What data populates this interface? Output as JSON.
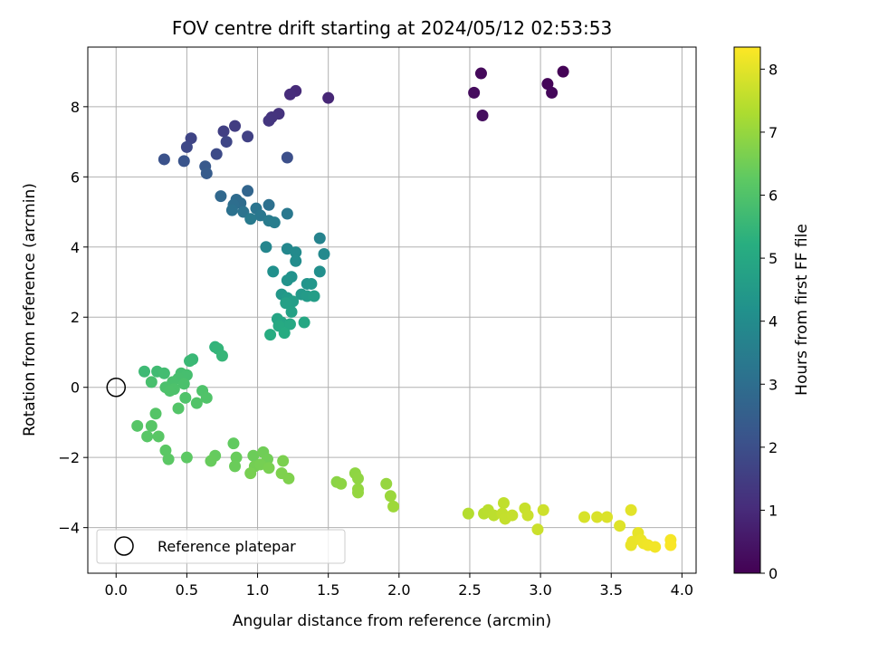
{
  "chart_data": {
    "type": "scatter",
    "title": "FOV centre drift starting at 2024/05/12 02:53:53",
    "xlabel": "Angular distance from reference (arcmin)",
    "ylabel": "Rotation from reference (arcmin)",
    "xlim": [
      -0.2,
      4.1
    ],
    "ylim": [
      -5.3,
      9.7
    ],
    "xticks": [
      0.0,
      0.5,
      1.0,
      1.5,
      2.0,
      2.5,
      3.0,
      3.5,
      4.0
    ],
    "xtick_labels": [
      "0.0",
      "0.5",
      "1.0",
      "1.5",
      "2.0",
      "2.5",
      "3.0",
      "3.5",
      "4.0"
    ],
    "yticks": [
      -4,
      -2,
      0,
      2,
      4,
      6,
      8
    ],
    "ytick_labels": [
      "−4",
      "−2",
      "0",
      "2",
      "4",
      "6",
      "8"
    ],
    "grid": true,
    "colormap": "viridis",
    "colorbar": {
      "label": "Hours from first FF file",
      "min": 0,
      "max": 8.35,
      "ticks": [
        0,
        1,
        2,
        3,
        4,
        5,
        6,
        7,
        8
      ],
      "tick_labels": [
        "0",
        "1",
        "2",
        "3",
        "4",
        "5",
        "6",
        "7",
        "8"
      ]
    },
    "legend": {
      "position": "lower-left",
      "entries": [
        {
          "label": "Reference platepar",
          "marker": "open-circle"
        }
      ]
    },
    "reference_point": {
      "x": 0.0,
      "y": 0.0
    },
    "points": [
      {
        "x": 3.16,
        "y": 9.0,
        "c": 0.05
      },
      {
        "x": 3.05,
        "y": 8.65,
        "c": 0.1
      },
      {
        "x": 3.08,
        "y": 8.4,
        "c": 0.15
      },
      {
        "x": 2.58,
        "y": 8.95,
        "c": 0.2
      },
      {
        "x": 2.53,
        "y": 8.4,
        "c": 0.25
      },
      {
        "x": 2.59,
        "y": 7.75,
        "c": 0.3
      },
      {
        "x": 1.5,
        "y": 8.25,
        "c": 0.9
      },
      {
        "x": 1.27,
        "y": 8.45,
        "c": 1.0
      },
      {
        "x": 1.23,
        "y": 8.35,
        "c": 1.05
      },
      {
        "x": 1.15,
        "y": 7.8,
        "c": 1.2
      },
      {
        "x": 1.1,
        "y": 7.7,
        "c": 1.25
      },
      {
        "x": 1.08,
        "y": 7.6,
        "c": 1.3
      },
      {
        "x": 0.84,
        "y": 7.45,
        "c": 1.5
      },
      {
        "x": 0.76,
        "y": 7.3,
        "c": 1.55
      },
      {
        "x": 0.93,
        "y": 7.15,
        "c": 1.6
      },
      {
        "x": 0.53,
        "y": 7.1,
        "c": 1.7
      },
      {
        "x": 0.78,
        "y": 7.0,
        "c": 1.75
      },
      {
        "x": 0.5,
        "y": 6.85,
        "c": 1.8
      },
      {
        "x": 0.71,
        "y": 6.65,
        "c": 1.9
      },
      {
        "x": 1.21,
        "y": 6.55,
        "c": 2.0
      },
      {
        "x": 0.34,
        "y": 6.5,
        "c": 2.1
      },
      {
        "x": 0.48,
        "y": 6.45,
        "c": 2.15
      },
      {
        "x": 0.63,
        "y": 6.3,
        "c": 2.3
      },
      {
        "x": 0.64,
        "y": 6.1,
        "c": 2.4
      },
      {
        "x": 0.93,
        "y": 5.6,
        "c": 2.7
      },
      {
        "x": 0.74,
        "y": 5.45,
        "c": 2.8
      },
      {
        "x": 0.85,
        "y": 5.35,
        "c": 2.9
      },
      {
        "x": 0.88,
        "y": 5.25,
        "c": 2.95
      },
      {
        "x": 0.83,
        "y": 5.2,
        "c": 3.0
      },
      {
        "x": 1.08,
        "y": 5.2,
        "c": 3.05
      },
      {
        "x": 0.82,
        "y": 5.05,
        "c": 3.1
      },
      {
        "x": 0.9,
        "y": 5.0,
        "c": 3.15
      },
      {
        "x": 0.99,
        "y": 5.1,
        "c": 3.2
      },
      {
        "x": 1.02,
        "y": 4.9,
        "c": 3.3
      },
      {
        "x": 1.21,
        "y": 4.95,
        "c": 3.35
      },
      {
        "x": 0.95,
        "y": 4.8,
        "c": 3.4
      },
      {
        "x": 1.08,
        "y": 4.75,
        "c": 3.45
      },
      {
        "x": 1.12,
        "y": 4.7,
        "c": 3.5
      },
      {
        "x": 1.44,
        "y": 4.25,
        "c": 3.7
      },
      {
        "x": 1.06,
        "y": 4.0,
        "c": 3.8
      },
      {
        "x": 1.21,
        "y": 3.95,
        "c": 3.85
      },
      {
        "x": 1.47,
        "y": 3.8,
        "c": 3.9
      },
      {
        "x": 1.27,
        "y": 3.85,
        "c": 3.95
      },
      {
        "x": 1.27,
        "y": 3.6,
        "c": 4.0
      },
      {
        "x": 1.44,
        "y": 3.3,
        "c": 4.1
      },
      {
        "x": 1.11,
        "y": 3.3,
        "c": 4.15
      },
      {
        "x": 1.24,
        "y": 3.15,
        "c": 4.2
      },
      {
        "x": 1.21,
        "y": 3.05,
        "c": 4.25
      },
      {
        "x": 1.35,
        "y": 2.95,
        "c": 4.3
      },
      {
        "x": 1.38,
        "y": 2.95,
        "c": 4.35
      },
      {
        "x": 1.17,
        "y": 2.65,
        "c": 4.4
      },
      {
        "x": 1.31,
        "y": 2.65,
        "c": 4.45
      },
      {
        "x": 1.21,
        "y": 2.55,
        "c": 4.5
      },
      {
        "x": 1.35,
        "y": 2.6,
        "c": 4.55
      },
      {
        "x": 1.4,
        "y": 2.6,
        "c": 4.6
      },
      {
        "x": 1.25,
        "y": 2.45,
        "c": 4.65
      },
      {
        "x": 1.2,
        "y": 2.4,
        "c": 4.7
      },
      {
        "x": 1.24,
        "y": 2.15,
        "c": 4.75
      },
      {
        "x": 1.14,
        "y": 1.95,
        "c": 4.85
      },
      {
        "x": 1.17,
        "y": 1.85,
        "c": 4.9
      },
      {
        "x": 1.33,
        "y": 1.85,
        "c": 4.95
      },
      {
        "x": 1.23,
        "y": 1.8,
        "c": 5.0
      },
      {
        "x": 1.15,
        "y": 1.75,
        "c": 5.05
      },
      {
        "x": 1.19,
        "y": 1.55,
        "c": 5.1
      },
      {
        "x": 1.09,
        "y": 1.5,
        "c": 5.15
      },
      {
        "x": 0.7,
        "y": 1.15,
        "c": 5.4
      },
      {
        "x": 0.72,
        "y": 1.1,
        "c": 5.45
      },
      {
        "x": 0.75,
        "y": 0.9,
        "c": 5.5
      },
      {
        "x": 0.54,
        "y": 0.8,
        "c": 5.55
      },
      {
        "x": 0.52,
        "y": 0.75,
        "c": 5.6
      },
      {
        "x": 0.2,
        "y": 0.45,
        "c": 5.65
      },
      {
        "x": 0.29,
        "y": 0.45,
        "c": 5.7
      },
      {
        "x": 0.34,
        "y": 0.4,
        "c": 5.75
      },
      {
        "x": 0.46,
        "y": 0.4,
        "c": 5.8
      },
      {
        "x": 0.5,
        "y": 0.35,
        "c": 5.82
      },
      {
        "x": 0.44,
        "y": 0.25,
        "c": 5.84
      },
      {
        "x": 0.25,
        "y": 0.15,
        "c": 5.86
      },
      {
        "x": 0.4,
        "y": 0.15,
        "c": 5.88
      },
      {
        "x": 0.48,
        "y": 0.1,
        "c": 5.9
      },
      {
        "x": 0.35,
        "y": 0.0,
        "c": 5.92
      },
      {
        "x": 0.41,
        "y": -0.05,
        "c": 5.94
      },
      {
        "x": 0.38,
        "y": -0.1,
        "c": 5.96
      },
      {
        "x": 0.61,
        "y": -0.1,
        "c": 5.98
      },
      {
        "x": 0.49,
        "y": -0.3,
        "c": 6.0
      },
      {
        "x": 0.64,
        "y": -0.3,
        "c": 6.02
      },
      {
        "x": 0.57,
        "y": -0.45,
        "c": 6.04
      },
      {
        "x": 0.44,
        "y": -0.6,
        "c": 6.06
      },
      {
        "x": 0.28,
        "y": -0.75,
        "c": 6.08
      },
      {
        "x": 0.15,
        "y": -1.1,
        "c": 6.1
      },
      {
        "x": 0.25,
        "y": -1.1,
        "c": 6.12
      },
      {
        "x": 0.22,
        "y": -1.4,
        "c": 6.14
      },
      {
        "x": 0.3,
        "y": -1.4,
        "c": 6.16
      },
      {
        "x": 0.35,
        "y": -1.8,
        "c": 6.18
      },
      {
        "x": 0.37,
        "y": -2.05,
        "c": 6.2
      },
      {
        "x": 0.5,
        "y": -2.0,
        "c": 6.22
      },
      {
        "x": 0.83,
        "y": -1.6,
        "c": 6.3
      },
      {
        "x": 0.7,
        "y": -1.95,
        "c": 6.35
      },
      {
        "x": 0.67,
        "y": -2.1,
        "c": 6.38
      },
      {
        "x": 0.85,
        "y": -2.0,
        "c": 6.4
      },
      {
        "x": 0.84,
        "y": -2.25,
        "c": 6.42
      },
      {
        "x": 0.97,
        "y": -1.95,
        "c": 6.45
      },
      {
        "x": 1.04,
        "y": -1.85,
        "c": 6.5
      },
      {
        "x": 1.07,
        "y": -2.05,
        "c": 6.52
      },
      {
        "x": 0.98,
        "y": -2.25,
        "c": 6.55
      },
      {
        "x": 1.02,
        "y": -2.2,
        "c": 6.58
      },
      {
        "x": 0.95,
        "y": -2.45,
        "c": 6.6
      },
      {
        "x": 1.08,
        "y": -2.3,
        "c": 6.62
      },
      {
        "x": 1.18,
        "y": -2.1,
        "c": 6.65
      },
      {
        "x": 1.17,
        "y": -2.45,
        "c": 6.68
      },
      {
        "x": 1.22,
        "y": -2.6,
        "c": 6.7
      },
      {
        "x": 1.56,
        "y": -2.7,
        "c": 6.85
      },
      {
        "x": 1.59,
        "y": -2.75,
        "c": 6.88
      },
      {
        "x": 1.69,
        "y": -2.45,
        "c": 6.9
      },
      {
        "x": 1.71,
        "y": -2.6,
        "c": 6.92
      },
      {
        "x": 1.71,
        "y": -2.9,
        "c": 6.95
      },
      {
        "x": 1.71,
        "y": -3.0,
        "c": 6.97
      },
      {
        "x": 1.91,
        "y": -2.75,
        "c": 7.0
      },
      {
        "x": 1.94,
        "y": -3.1,
        "c": 7.05
      },
      {
        "x": 1.96,
        "y": -3.4,
        "c": 7.1
      },
      {
        "x": 2.49,
        "y": -3.6,
        "c": 7.4
      },
      {
        "x": 2.6,
        "y": -3.6,
        "c": 7.45
      },
      {
        "x": 2.63,
        "y": -3.5,
        "c": 7.48
      },
      {
        "x": 2.67,
        "y": -3.65,
        "c": 7.5
      },
      {
        "x": 2.74,
        "y": -3.3,
        "c": 7.55
      },
      {
        "x": 2.73,
        "y": -3.6,
        "c": 7.58
      },
      {
        "x": 2.75,
        "y": -3.75,
        "c": 7.6
      },
      {
        "x": 2.8,
        "y": -3.65,
        "c": 7.62
      },
      {
        "x": 2.89,
        "y": -3.45,
        "c": 7.65
      },
      {
        "x": 2.91,
        "y": -3.65,
        "c": 7.68
      },
      {
        "x": 2.98,
        "y": -4.05,
        "c": 7.7
      },
      {
        "x": 3.02,
        "y": -3.5,
        "c": 7.72
      },
      {
        "x": 3.31,
        "y": -3.7,
        "c": 7.85
      },
      {
        "x": 3.4,
        "y": -3.7,
        "c": 7.88
      },
      {
        "x": 3.47,
        "y": -3.7,
        "c": 7.9
      },
      {
        "x": 3.56,
        "y": -3.95,
        "c": 7.95
      },
      {
        "x": 3.64,
        "y": -3.5,
        "c": 8.0
      },
      {
        "x": 3.69,
        "y": -4.15,
        "c": 8.05
      },
      {
        "x": 3.64,
        "y": -4.5,
        "c": 8.08
      },
      {
        "x": 3.65,
        "y": -4.4,
        "c": 8.1
      },
      {
        "x": 3.71,
        "y": -4.35,
        "c": 8.12
      },
      {
        "x": 3.73,
        "y": -4.45,
        "c": 8.15
      },
      {
        "x": 3.76,
        "y": -4.5,
        "c": 8.18
      },
      {
        "x": 3.81,
        "y": -4.55,
        "c": 8.2
      },
      {
        "x": 3.92,
        "y": -4.35,
        "c": 8.25
      },
      {
        "x": 3.92,
        "y": -4.5,
        "c": 8.3
      }
    ]
  }
}
